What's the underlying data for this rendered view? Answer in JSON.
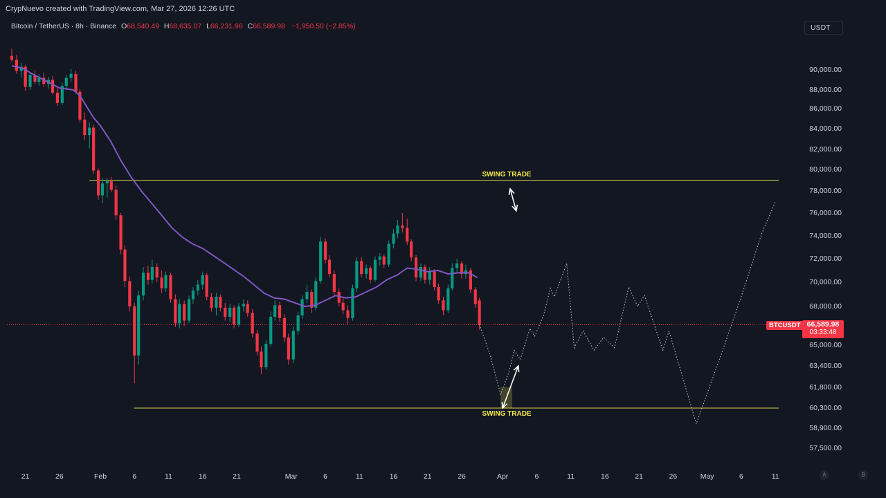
{
  "header": {
    "credit": "CrypNuevo created with TradingView.com, Mar 27, 2026 12:26 UTC"
  },
  "legend": {
    "symbol": "Bitcoin / TetherUS · 8h · Binance",
    "open_key": "O",
    "open": "68,540.49",
    "high_key": "H",
    "high": "68,635.07",
    "low_key": "L",
    "low": "66,231.96",
    "close_key": "C",
    "close": "66,589.98",
    "change": "−1,950.50 (−2.85%)"
  },
  "currency_button": "USDT",
  "price_axis": [
    {
      "label": "90,000.00",
      "value": 90000
    },
    {
      "label": "88,000.00",
      "value": 88000
    },
    {
      "label": "86,000.00",
      "value": 86000
    },
    {
      "label": "84,000.00",
      "value": 84000
    },
    {
      "label": "82,000.00",
      "value": 82000
    },
    {
      "label": "80,000.00",
      "value": 80000
    },
    {
      "label": "78,000.00",
      "value": 78000
    },
    {
      "label": "76,000.00",
      "value": 76000
    },
    {
      "label": "74,000.00",
      "value": 74000
    },
    {
      "label": "72,000.00",
      "value": 72000
    },
    {
      "label": "70,000.00",
      "value": 70000
    },
    {
      "label": "68,000.00",
      "value": 68000
    },
    {
      "label": "65,000.00",
      "value": 65000
    },
    {
      "label": "63,400.00",
      "value": 63400
    },
    {
      "label": "61,800.00",
      "value": 61800
    },
    {
      "label": "60,300.00",
      "value": 60300
    },
    {
      "label": "58,900.00",
      "value": 58900
    },
    {
      "label": "57,500.00",
      "value": 57500
    }
  ],
  "time_axis": [
    {
      "label": "21",
      "day": -11
    },
    {
      "label": "26",
      "day": -6
    },
    {
      "label": "Feb",
      "day": 0
    },
    {
      "label": "6",
      "day": 5
    },
    {
      "label": "11",
      "day": 10
    },
    {
      "label": "16",
      "day": 15
    },
    {
      "label": "21",
      "day": 20
    },
    {
      "label": "Mar",
      "day": 28
    },
    {
      "label": "6",
      "day": 33
    },
    {
      "label": "11",
      "day": 38
    },
    {
      "label": "16",
      "day": 43
    },
    {
      "label": "21",
      "day": 48
    },
    {
      "label": "26",
      "day": 53
    },
    {
      "label": "Apr",
      "day": 59
    },
    {
      "label": "6",
      "day": 64
    },
    {
      "label": "11",
      "day": 69
    },
    {
      "label": "16",
      "day": 74
    },
    {
      "label": "21",
      "day": 79
    },
    {
      "label": "26",
      "day": 84
    },
    {
      "label": "May",
      "day": 89
    },
    {
      "label": "6",
      "day": 94
    },
    {
      "label": "11",
      "day": 99
    }
  ],
  "last_price": {
    "symbol_tag": "BTCUSDT",
    "value": "66,589.98",
    "countdown": "03:33:48",
    "price": 66589.98
  },
  "annotations": {
    "upper_label": "SWING TRADE",
    "lower_label": "SWING TRADE",
    "upper_level": 79000,
    "lower_level": 60300
  },
  "axis_buttons": {
    "auto": "A",
    "log": "B"
  },
  "colors": {
    "background": "#131722",
    "up": "#089981",
    "down": "#f23645",
    "ma": "#7e57c2",
    "level_line": "#d7d34a",
    "projection": "#c8c8c8"
  },
  "chart_data": {
    "type": "candlestick",
    "symbol": "Bitcoin / TetherUS",
    "interval": "8h",
    "x_unit": "days relative to Feb 1, 2026",
    "y_axis_range": [
      56800,
      92500
    ],
    "candles": [
      [
        -13.0,
        91400,
        92100,
        90800,
        91000
      ],
      [
        -12.3,
        91000,
        91500,
        89600,
        89900
      ],
      [
        -11.6,
        89900,
        90700,
        89200,
        90300
      ],
      [
        -11.0,
        90300,
        90500,
        87900,
        88300
      ],
      [
        -10.3,
        88300,
        89800,
        88000,
        89500
      ],
      [
        -9.6,
        89500,
        90000,
        88600,
        88800
      ],
      [
        -9.0,
        88800,
        89600,
        88400,
        89200
      ],
      [
        -8.3,
        89200,
        89700,
        88300,
        88600
      ],
      [
        -7.6,
        88600,
        89300,
        88100,
        89000
      ],
      [
        -7.0,
        89000,
        89400,
        87500,
        87700
      ],
      [
        -6.3,
        87700,
        88300,
        86300,
        86600
      ],
      [
        -5.6,
        86600,
        88700,
        86400,
        88400
      ],
      [
        -5.0,
        88400,
        89500,
        88000,
        89200
      ],
      [
        -4.3,
        89200,
        90100,
        88800,
        89600
      ],
      [
        -3.6,
        89600,
        89900,
        87600,
        87800
      ],
      [
        -3.0,
        87800,
        88100,
        84600,
        84900
      ],
      [
        -2.3,
        84900,
        85600,
        82900,
        83400
      ],
      [
        -1.6,
        83400,
        84600,
        82100,
        84100
      ],
      [
        -1.0,
        84100,
        84400,
        79600,
        79900
      ],
      [
        -0.3,
        79900,
        80100,
        77200,
        77600
      ],
      [
        0.3,
        77600,
        79200,
        76900,
        78700
      ],
      [
        1.0,
        78700,
        79200,
        77400,
        78900
      ],
      [
        1.6,
        78900,
        79300,
        77900,
        78100
      ],
      [
        2.3,
        78100,
        78500,
        75400,
        75800
      ],
      [
        3.0,
        75800,
        76000,
        72400,
        72800
      ],
      [
        3.6,
        72800,
        73200,
        69600,
        70100
      ],
      [
        4.3,
        70100,
        70500,
        67600,
        68000
      ],
      [
        5.0,
        68000,
        68300,
        62100,
        64200
      ],
      [
        5.6,
        64200,
        69300,
        63500,
        68900
      ],
      [
        6.3,
        68900,
        71300,
        68500,
        70800
      ],
      [
        7.0,
        70800,
        71400,
        69800,
        70200
      ],
      [
        7.6,
        70200,
        71900,
        69900,
        71300
      ],
      [
        8.3,
        71300,
        71600,
        70000,
        70400
      ],
      [
        9.0,
        70400,
        71000,
        69100,
        69500
      ],
      [
        9.6,
        69500,
        70900,
        69200,
        70600
      ],
      [
        10.3,
        70600,
        70800,
        68300,
        68600
      ],
      [
        11.0,
        68600,
        69000,
        66400,
        66700
      ],
      [
        11.6,
        66700,
        68600,
        66300,
        68200
      ],
      [
        12.3,
        68200,
        68500,
        66500,
        66900
      ],
      [
        13.0,
        66900,
        68900,
        66700,
        68600
      ],
      [
        13.6,
        68600,
        69600,
        68200,
        69300
      ],
      [
        14.3,
        69300,
        70200,
        68900,
        69800
      ],
      [
        15.0,
        69800,
        70900,
        69400,
        70600
      ],
      [
        15.6,
        70600,
        70800,
        68500,
        68800
      ],
      [
        16.3,
        68800,
        69100,
        67600,
        67900
      ],
      [
        17.0,
        67900,
        69100,
        67300,
        68800
      ],
      [
        17.6,
        68800,
        69000,
        67600,
        67900
      ],
      [
        18.3,
        67900,
        68300,
        66900,
        67200
      ],
      [
        19.0,
        67200,
        68200,
        66800,
        67900
      ],
      [
        19.6,
        67900,
        68100,
        66300,
        66600
      ],
      [
        20.3,
        66600,
        68300,
        66400,
        68000
      ],
      [
        21.0,
        68000,
        68600,
        67600,
        68200
      ],
      [
        21.6,
        68200,
        68500,
        67200,
        67500
      ],
      [
        22.3,
        67500,
        67800,
        65600,
        65900
      ],
      [
        23.0,
        65900,
        66200,
        64200,
        64500
      ],
      [
        23.6,
        64500,
        64900,
        62800,
        63300
      ],
      [
        24.3,
        63300,
        65400,
        63100,
        65100
      ],
      [
        25.0,
        65100,
        67600,
        64900,
        67200
      ],
      [
        25.6,
        67200,
        68500,
        66900,
        68100
      ],
      [
        26.3,
        68100,
        68400,
        66800,
        67100
      ],
      [
        27.0,
        67100,
        67400,
        65200,
        65600
      ],
      [
        27.6,
        65600,
        65900,
        63500,
        63900
      ],
      [
        28.3,
        63900,
        66400,
        63600,
        66100
      ],
      [
        29.0,
        66100,
        67600,
        65800,
        67300
      ],
      [
        29.6,
        67300,
        68900,
        67000,
        68600
      ],
      [
        30.3,
        68600,
        69800,
        68300,
        69200
      ],
      [
        31.0,
        69200,
        69400,
        67500,
        67900
      ],
      [
        31.6,
        67900,
        70400,
        67700,
        70100
      ],
      [
        32.3,
        70100,
        73900,
        69900,
        73500
      ],
      [
        33.0,
        73500,
        73800,
        71600,
        71900
      ],
      [
        33.6,
        71900,
        72300,
        70400,
        70700
      ],
      [
        34.3,
        70700,
        71000,
        68900,
        69200
      ],
      [
        35.0,
        69200,
        69500,
        68000,
        68300
      ],
      [
        35.6,
        68300,
        68700,
        67400,
        67700
      ],
      [
        36.3,
        67700,
        68100,
        66600,
        67100
      ],
      [
        37.0,
        67100,
        69800,
        66900,
        69500
      ],
      [
        37.6,
        69500,
        72100,
        69200,
        71800
      ],
      [
        38.3,
        71800,
        72100,
        70400,
        70700
      ],
      [
        39.0,
        70700,
        71500,
        70300,
        71200
      ],
      [
        39.6,
        71200,
        71400,
        69900,
        70200
      ],
      [
        40.3,
        70200,
        72200,
        70000,
        71900
      ],
      [
        41.0,
        71900,
        72500,
        71400,
        72200
      ],
      [
        41.6,
        72200,
        72400,
        71200,
        71500
      ],
      [
        42.3,
        71500,
        73600,
        71300,
        73300
      ],
      [
        43.0,
        73300,
        74600,
        72900,
        74200
      ],
      [
        43.6,
        74200,
        75400,
        73800,
        74900
      ],
      [
        44.3,
        74900,
        76000,
        74300,
        74700
      ],
      [
        45.0,
        74700,
        75500,
        73200,
        73500
      ],
      [
        45.6,
        73500,
        73700,
        71800,
        72100
      ],
      [
        46.3,
        72100,
        72300,
        70100,
        70400
      ],
      [
        47.0,
        70400,
        71600,
        70100,
        71300
      ],
      [
        47.6,
        71300,
        71500,
        69900,
        70200
      ],
      [
        48.3,
        70200,
        71300,
        69800,
        70900
      ],
      [
        49.0,
        70900,
        71100,
        69300,
        69600
      ],
      [
        49.6,
        69600,
        69900,
        68200,
        68500
      ],
      [
        50.3,
        68500,
        68800,
        67300,
        67700
      ],
      [
        51.0,
        67700,
        69800,
        67500,
        69500
      ],
      [
        51.6,
        69500,
        71600,
        69300,
        71200
      ],
      [
        52.3,
        71200,
        72000,
        70800,
        71600
      ],
      [
        53.0,
        71600,
        71800,
        70300,
        70700
      ],
      [
        53.6,
        70700,
        71500,
        70300,
        71000
      ],
      [
        54.3,
        71000,
        71200,
        69100,
        69400
      ],
      [
        55.0,
        69400,
        69600,
        67900,
        68200
      ],
      [
        55.6,
        68500,
        68700,
        66200,
        66600
      ]
    ],
    "moving_average": [
      [
        -13.0,
        90400
      ],
      [
        -11.5,
        90200
      ],
      [
        -10.0,
        89600
      ],
      [
        -8.0,
        88900
      ],
      [
        -6.0,
        88200
      ],
      [
        -4.0,
        88000
      ],
      [
        -3.0,
        87400
      ],
      [
        -2.0,
        86200
      ],
      [
        -1.0,
        85100
      ],
      [
        0.0,
        84300
      ],
      [
        1.5,
        82800
      ],
      [
        3.0,
        80900
      ],
      [
        4.5,
        79300
      ],
      [
        6.0,
        78000
      ],
      [
        7.5,
        76900
      ],
      [
        9.0,
        75800
      ],
      [
        10.5,
        74700
      ],
      [
        12.0,
        73900
      ],
      [
        13.5,
        73300
      ],
      [
        15.0,
        72900
      ],
      [
        16.5,
        72300
      ],
      [
        18.0,
        71700
      ],
      [
        19.5,
        71100
      ],
      [
        21.0,
        70500
      ],
      [
        22.5,
        69800
      ],
      [
        24.0,
        69100
      ],
      [
        25.5,
        68700
      ],
      [
        27.0,
        68600
      ],
      [
        28.5,
        68300
      ],
      [
        30.0,
        68000
      ],
      [
        31.5,
        68100
      ],
      [
        33.0,
        68500
      ],
      [
        34.5,
        68900
      ],
      [
        36.0,
        68700
      ],
      [
        37.5,
        68800
      ],
      [
        39.0,
        69200
      ],
      [
        40.5,
        69600
      ],
      [
        42.0,
        70200
      ],
      [
        43.5,
        70600
      ],
      [
        45.0,
        71200
      ],
      [
        46.5,
        71100
      ],
      [
        48.0,
        70900
      ],
      [
        49.5,
        71000
      ],
      [
        51.0,
        70700
      ],
      [
        52.5,
        70800
      ],
      [
        54.0,
        70800
      ],
      [
        55.3,
        70400
      ]
    ],
    "projection": [
      [
        55.6,
        66600
      ],
      [
        57.2,
        64200
      ],
      [
        58.7,
        61300
      ],
      [
        59.9,
        62900
      ],
      [
        60.7,
        64600
      ],
      [
        61.6,
        63900
      ],
      [
        63.0,
        66300
      ],
      [
        63.7,
        65700
      ],
      [
        65.0,
        67300
      ],
      [
        66.0,
        69500
      ],
      [
        66.6,
        68800
      ],
      [
        68.4,
        71600
      ],
      [
        69.5,
        64800
      ],
      [
        70.8,
        66100
      ],
      [
        72.4,
        64600
      ],
      [
        73.8,
        65600
      ],
      [
        75.4,
        64800
      ],
      [
        77.5,
        69600
      ],
      [
        78.8,
        68000
      ],
      [
        79.8,
        68900
      ],
      [
        82.5,
        64600
      ],
      [
        83.4,
        66100
      ],
      [
        87.4,
        59200
      ],
      [
        91.0,
        64200
      ],
      [
        94.0,
        68800
      ],
      [
        97.0,
        74200
      ],
      [
        99.0,
        77000
      ]
    ],
    "zones": [
      {
        "x0": 58.7,
        "x1": 60.4,
        "y0": 60300,
        "y1": 61800
      }
    ],
    "arrows": [
      {
        "from": [
          60.1,
          78200
        ],
        "to": [
          61.0,
          76200
        ]
      },
      {
        "from": [
          59.0,
          60300
        ],
        "to": [
          61.3,
          63400
        ]
      }
    ],
    "horizontal_levels": [
      {
        "price": 79000,
        "x0": -1.6,
        "x1": 99.5
      },
      {
        "price": 60300,
        "x0": 4.9,
        "x1": 99.5
      }
    ],
    "current_price_line": 66589.98
  }
}
